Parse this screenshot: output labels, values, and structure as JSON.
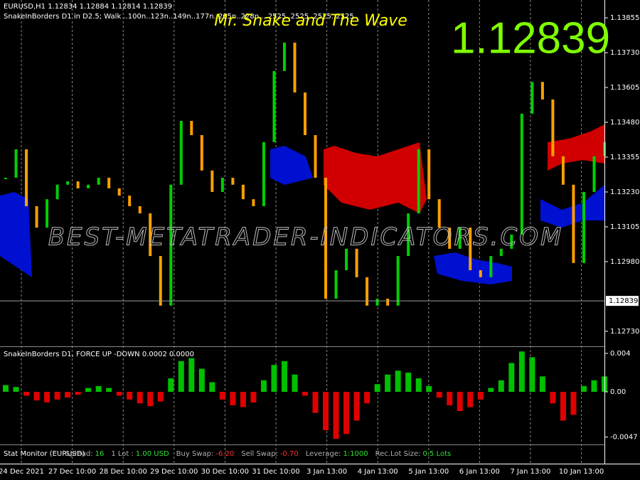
{
  "main_chart": {
    "symbol_line": "EURUSD,H1  1.12834 1.12884 1.12814 1.12839",
    "indicator_line": "SnakeInBorders D1 in D2.5;   Walk ..100n..123n..149n..177n..205n..228n....2525..2525..2525..2525",
    "title": "Mr. Snake and The Wave",
    "current_price": "1.12839",
    "big_price": "1.12839",
    "watermark": "BEST-METATRADER-INDICATORS.COM",
    "ylim": [
      1.12676,
      1.13919
    ],
    "price_ticks": [
      {
        "value": 1.13855,
        "label": "1.13855"
      },
      {
        "value": 1.1373,
        "label": "1.13730"
      },
      {
        "value": 1.13605,
        "label": "1.13605"
      },
      {
        "value": 1.1348,
        "label": "1.13480"
      },
      {
        "value": 1.13355,
        "label": "1.13355"
      },
      {
        "value": 1.1323,
        "label": "1.13230"
      },
      {
        "value": 1.13105,
        "label": "1.13105"
      },
      {
        "value": 1.1298,
        "label": "1.12980"
      },
      {
        "value": 1.1273,
        "label": "1.12730"
      }
    ],
    "current_price_value": 1.12839,
    "closes": [
      1.13281,
      1.13383,
      1.13179,
      1.13102,
      1.13204,
      1.13256,
      1.13268,
      1.13243,
      1.13256,
      1.13281,
      1.13243,
      1.13217,
      1.13179,
      1.13153,
      1.13,
      1.12822,
      1.13256,
      1.13485,
      1.13434,
      1.13307,
      1.1323,
      1.13281,
      1.13256,
      1.13204,
      1.13179,
      1.13409,
      1.13664,
      1.13766,
      1.13587,
      1.13434,
      1.13281,
      1.12847,
      1.12949,
      1.13026,
      1.12924,
      1.12822,
      1.12847,
      1.12822,
      1.13,
      1.13153,
      1.13383,
      1.13204,
      1.13102,
      1.13026,
      1.13102,
      1.12949,
      1.12924,
      1.13,
      1.13026,
      1.13077,
      1.13511,
      1.13625,
      1.13562,
      1.13358,
      1.13256,
      1.12975,
      1.1323,
      1.13358,
      1.13409
    ]
  },
  "oscillator": {
    "label": "SnakeInBorders D1, FORCE UP -DOWN  0.0002 0.0000",
    "ylim": [
      -0.00548,
      0.00459
    ],
    "ticks": [
      0.004,
      {
        "value": 0,
        "label": "0.00"
      },
      -0.0047
    ],
    "values": [
      0.0007,
      0.0005,
      -0.0004,
      -0.0009,
      -0.0011,
      -0.0008,
      -0.0006,
      -0.0003,
      0.0004,
      0.0006,
      0.0004,
      -0.0004,
      -0.0008,
      -0.0012,
      -0.0015,
      -0.001,
      0.0014,
      0.0032,
      0.0035,
      0.0024,
      0.001,
      -0.0008,
      -0.0014,
      -0.0016,
      -0.0011,
      0.0012,
      0.0028,
      0.0032,
      0.0018,
      -0.0004,
      -0.0022,
      -0.004,
      -0.0049,
      -0.0044,
      -0.003,
      -0.0012,
      0.0008,
      0.0018,
      0.0022,
      0.002,
      0.0014,
      0.0006,
      -0.0006,
      -0.0014,
      -0.002,
      -0.0016,
      -0.0008,
      0.0004,
      0.0012,
      0.003,
      0.0042,
      0.0036,
      0.0016,
      -0.0012,
      -0.003,
      -0.0024,
      0.0006,
      0.0012,
      0.0016
    ]
  },
  "stat_monitor": {
    "title": "Stat Monitor (EURUSD)",
    "items": [
      {
        "label": "Spread:",
        "value": "16"
      },
      {
        "label": "1 Lot :",
        "value": "1.00 USD"
      },
      {
        "label": "Buy Swap:",
        "value": "-6.20"
      },
      {
        "label": "Sell Swap:",
        "value": "-0.70"
      },
      {
        "label": "Leverage:",
        "value": "1:1000"
      },
      {
        "label": "Rec.Lot Size:",
        "value": "0.5 Lots"
      }
    ]
  },
  "time_axis": [
    "24 Dec 2021",
    "27 Dec 10:00",
    "28 Dec 10:00",
    "29 Dec 10:00",
    "30 Dec 10:00",
    "31 Dec 10:00",
    "3 Jan 13:00",
    "4 Jan 13:00",
    "5 Jan 13:00",
    "6 Jan 13:00",
    "7 Jan 13:00",
    "10 Jan 13:00"
  ]
}
